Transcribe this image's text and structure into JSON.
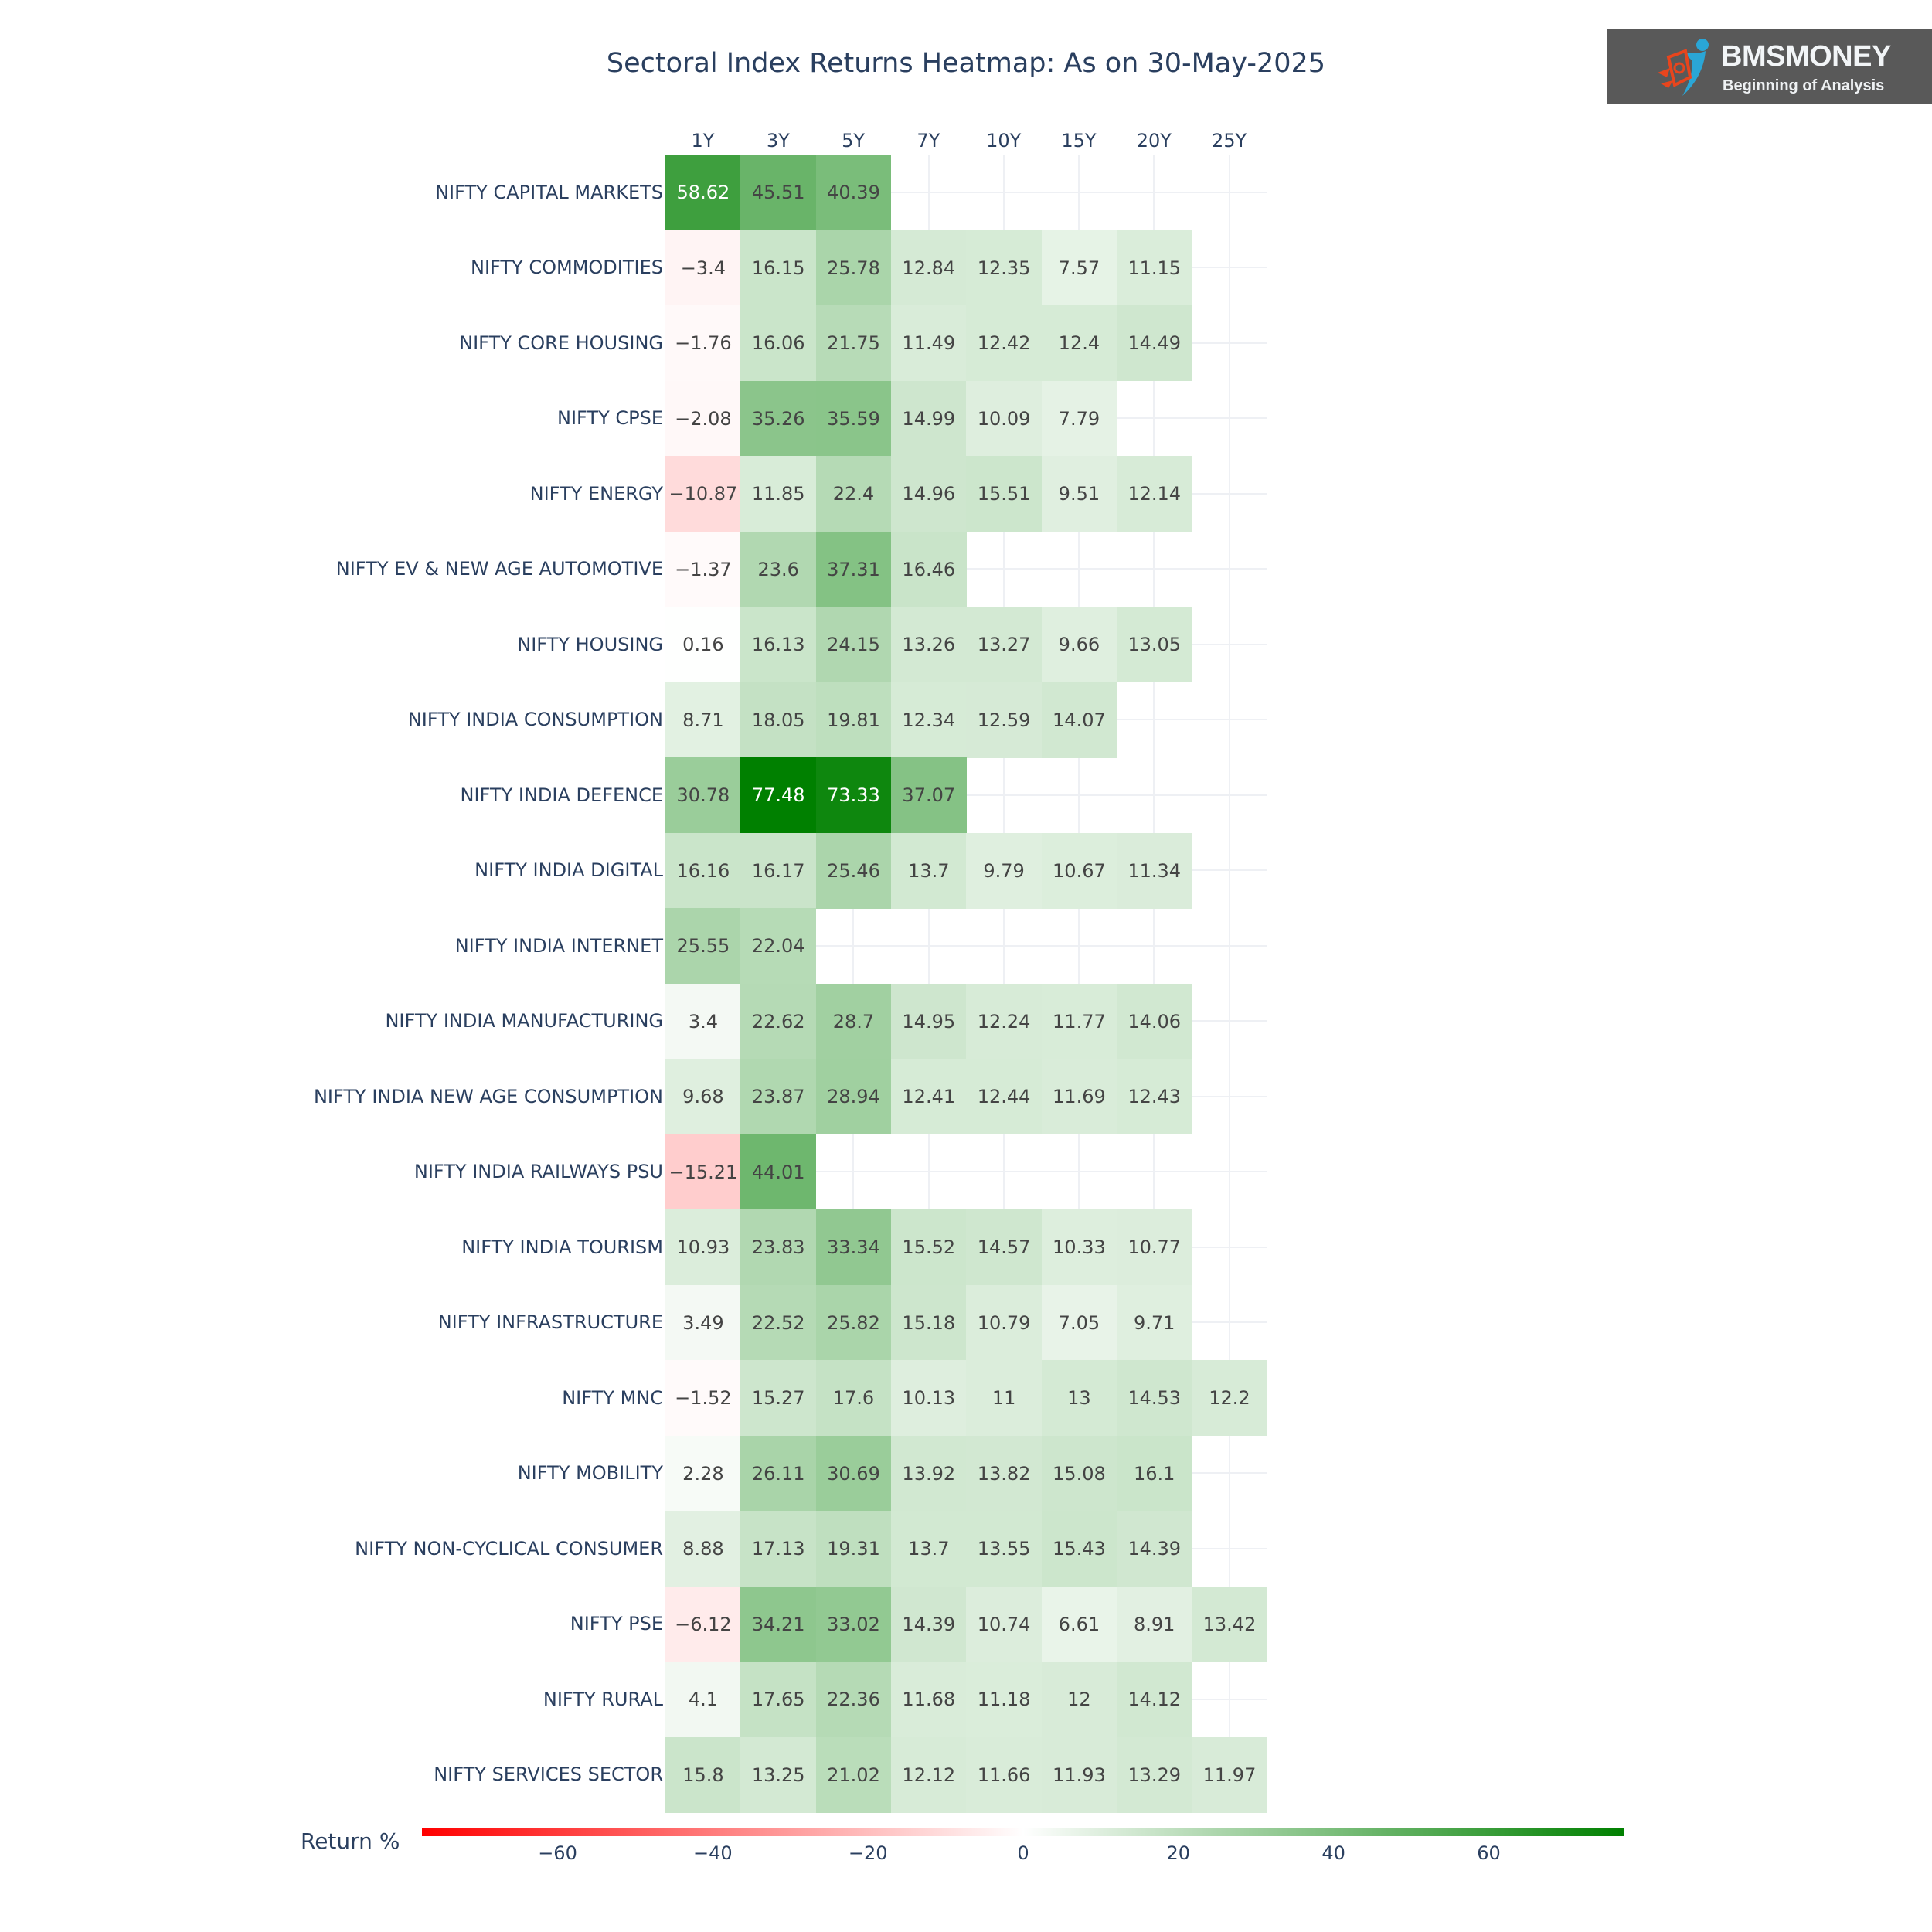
{
  "title": "Sectoral Index Returns Heatmap: As on 30-May-2025",
  "logo": {
    "name": "BMSMONEY",
    "tagline": "Beginning of Analysis",
    "icon": "dollar-figure-logo-icon"
  },
  "colorbar": {
    "title": "Return %",
    "ticks": [
      "−60",
      "−40",
      "−20",
      "0",
      "20",
      "40",
      "60"
    ],
    "tick_values": [
      -60,
      -40,
      -20,
      0,
      20,
      40,
      60
    ],
    "range": [
      -77.48,
      77.48
    ],
    "colors": {
      "low": "#FF0000",
      "mid": "#FFFFFF",
      "high": "#008000"
    }
  },
  "chart_data": {
    "type": "heatmap",
    "title": "Sectoral Index Returns Heatmap: As on 30-May-2025",
    "xlabel": "",
    "ylabel": "",
    "x": [
      "1Y",
      "3Y",
      "5Y",
      "7Y",
      "10Y",
      "15Y",
      "20Y",
      "25Y"
    ],
    "y": [
      "NIFTY CAPITAL MARKETS",
      "NIFTY COMMODITIES",
      "NIFTY CORE HOUSING",
      "NIFTY CPSE",
      "NIFTY ENERGY",
      "NIFTY EV & NEW AGE AUTOMOTIVE",
      "NIFTY HOUSING",
      "NIFTY INDIA CONSUMPTION",
      "NIFTY INDIA DEFENCE",
      "NIFTY INDIA DIGITAL",
      "NIFTY INDIA INTERNET",
      "NIFTY INDIA MANUFACTURING",
      "NIFTY INDIA NEW AGE CONSUMPTION",
      "NIFTY INDIA RAILWAYS PSU",
      "NIFTY INDIA TOURISM",
      "NIFTY INFRASTRUCTURE",
      "NIFTY MNC",
      "NIFTY MOBILITY",
      "NIFTY NON-CYCLICAL CONSUMER",
      "NIFTY PSE",
      "NIFTY RURAL",
      "NIFTY SERVICES SECTOR"
    ],
    "z": [
      [
        58.62,
        45.51,
        40.39,
        null,
        null,
        null,
        null,
        null
      ],
      [
        -3.4,
        16.15,
        25.78,
        12.84,
        12.35,
        7.57,
        11.15,
        null
      ],
      [
        -1.76,
        16.06,
        21.75,
        11.49,
        12.42,
        12.4,
        14.49,
        null
      ],
      [
        -2.08,
        35.26,
        35.59,
        14.99,
        10.09,
        7.79,
        null,
        null
      ],
      [
        -10.87,
        11.85,
        22.4,
        14.96,
        15.51,
        9.51,
        12.14,
        null
      ],
      [
        -1.37,
        23.6,
        37.31,
        16.46,
        null,
        null,
        null,
        null
      ],
      [
        0.16,
        16.13,
        24.15,
        13.26,
        13.27,
        9.66,
        13.05,
        null
      ],
      [
        8.71,
        18.05,
        19.81,
        12.34,
        12.59,
        14.07,
        null,
        null
      ],
      [
        30.78,
        77.48,
        73.33,
        37.07,
        null,
        null,
        null,
        null
      ],
      [
        16.16,
        16.17,
        25.46,
        13.7,
        9.79,
        10.67,
        11.34,
        null
      ],
      [
        25.55,
        22.04,
        null,
        null,
        null,
        null,
        null,
        null
      ],
      [
        3.4,
        22.62,
        28.7,
        14.95,
        12.24,
        11.77,
        14.06,
        null
      ],
      [
        9.68,
        23.87,
        28.94,
        12.41,
        12.44,
        11.69,
        12.43,
        null
      ],
      [
        -15.21,
        44.01,
        null,
        null,
        null,
        null,
        null,
        null
      ],
      [
        10.93,
        23.83,
        33.34,
        15.52,
        14.57,
        10.33,
        10.77,
        null
      ],
      [
        3.49,
        22.52,
        25.82,
        15.18,
        10.79,
        7.05,
        9.71,
        null
      ],
      [
        -1.52,
        15.27,
        17.6,
        10.13,
        11,
        13,
        14.53,
        12.2
      ],
      [
        2.28,
        26.11,
        30.69,
        13.92,
        13.82,
        15.08,
        16.1,
        null
      ],
      [
        8.88,
        17.13,
        19.31,
        13.7,
        13.55,
        15.43,
        14.39,
        null
      ],
      [
        -6.12,
        34.21,
        33.02,
        14.39,
        10.74,
        6.61,
        8.91,
        13.42
      ],
      [
        4.1,
        17.65,
        22.36,
        11.68,
        11.18,
        12,
        14.12,
        null
      ],
      [
        15.8,
        13.25,
        21.02,
        12.12,
        11.66,
        11.93,
        13.29,
        11.97
      ]
    ],
    "colorscale": [
      "#FF0000",
      "#FFFFFF",
      "#008000"
    ],
    "zrange": [
      -77.48,
      77.48
    ],
    "colorbar_title": "Return %",
    "text_labels_on_cells": true,
    "grid": true,
    "legend_position": "bottom (horizontal colorbar)"
  }
}
